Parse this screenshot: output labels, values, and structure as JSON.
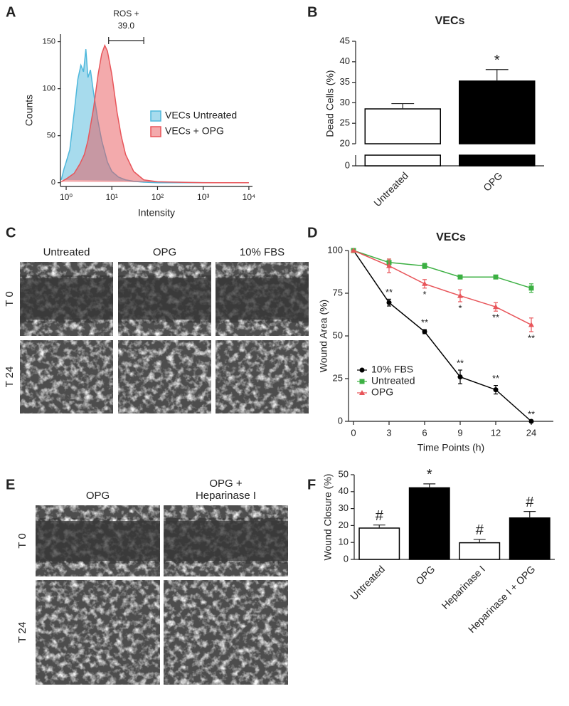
{
  "chart_data": [
    {
      "type": "area",
      "panel_label": "A",
      "xlabel": "Intensity",
      "ylabel": "Counts",
      "xscale": "log",
      "xlim": [
        0.75,
        12000
      ],
      "ylim": [
        -4,
        158
      ],
      "xticks": [
        {
          "value": 1,
          "label": "10⁰"
        },
        {
          "value": 10,
          "label": "10¹"
        },
        {
          "value": 100,
          "label": "10²"
        },
        {
          "value": 1000,
          "label": "10³"
        },
        {
          "value": 10000,
          "label": "10⁴"
        }
      ],
      "yticks": [
        0,
        50,
        100,
        150
      ],
      "series": [
        {
          "name": "VECs Untreated",
          "color": "#4fb8dc",
          "x": [
            0.78,
            0.9,
            1,
            1.2,
            1.5,
            1.8,
            2.1,
            2.4,
            2.7,
            3,
            3.4,
            4,
            5,
            6,
            8,
            10,
            14,
            20,
            30,
            50,
            100,
            1000,
            10000
          ],
          "values": [
            3,
            15,
            22,
            35,
            75,
            110,
            125,
            118,
            142,
            112,
            120,
            95,
            65,
            45,
            22,
            12,
            6,
            3,
            1.5,
            0.5,
            0,
            0,
            0
          ]
        },
        {
          "name": "VECs + OPG",
          "color": "#e8555a",
          "x": [
            0.78,
            1,
            1.5,
            2,
            2.5,
            3,
            4,
            5,
            6,
            7,
            8,
            10,
            13,
            16,
            20,
            30,
            50,
            100,
            1000,
            10000
          ],
          "values": [
            1,
            4,
            10,
            20,
            30,
            45,
            80,
            115,
            137,
            146,
            140,
            115,
            75,
            50,
            30,
            12,
            3,
            1,
            0,
            0
          ]
        }
      ],
      "gate": {
        "label": "ROS +",
        "value": {
          "value": 39,
          "label": "39.0"
        },
        "range": [
          8.5,
          50
        ]
      }
    },
    {
      "type": "bar",
      "panel_label": "B",
      "title": "VECs",
      "ylabel": "Dead Cells (%)",
      "categories": [
        "Untreated",
        "OPG"
      ],
      "values": [
        28.5,
        35.3
      ],
      "errors": [
        1.3,
        2.8
      ],
      "colors": [
        "#ffffff",
        "#000000"
      ],
      "ylim": [
        0,
        45
      ],
      "yticks": [
        0,
        20,
        25,
        30,
        35,
        40,
        45
      ],
      "axis_break": [
        2.5,
        20
      ],
      "annotations": [
        null,
        "*"
      ]
    },
    {
      "type": "line",
      "panel_label": "D",
      "title": "VECs",
      "xlabel": "Time Points (h)",
      "ylabel": "Wound Area (%)",
      "categories": [
        "0",
        "3",
        "6",
        "9",
        "12",
        "24"
      ],
      "ylim": [
        0,
        100
      ],
      "yticks": [
        0,
        25,
        50,
        75,
        100
      ],
      "legend": "lower left",
      "series": [
        {
          "name": "10% FBS",
          "color": "#000000",
          "marker": "circle",
          "values": [
            100,
            69.5,
            52.5,
            26,
            18.5,
            0
          ],
          "errors": [
            0,
            2,
            1.2,
            4,
            2.5,
            0
          ],
          "significance": [
            null,
            "**",
            "**",
            "**",
            "**",
            "**"
          ]
        },
        {
          "name": "Untreated",
          "color": "#3cb043",
          "marker": "square",
          "values": [
            100,
            93,
            91,
            84.5,
            84.5,
            78
          ],
          "errors": [
            0,
            2,
            1.5,
            1,
            0.8,
            2.5
          ],
          "significance": [
            null,
            null,
            null,
            null,
            null,
            null
          ]
        },
        {
          "name": "OPG",
          "color": "#e8555a",
          "marker": "triangle",
          "values": [
            100,
            91,
            80.5,
            73.5,
            67,
            56.5
          ],
          "errors": [
            0,
            4,
            2.5,
            3.5,
            2.5,
            4
          ],
          "significance": [
            null,
            null,
            "*",
            "*",
            "**",
            "**"
          ]
        }
      ]
    },
    {
      "type": "bar",
      "panel_label": "F",
      "ylabel": "Wound Closure (%)",
      "categories": [
        "Untreated",
        "OPG",
        "Heparinase I",
        "Heparinase I + OPG"
      ],
      "values": [
        18.5,
        42.3,
        9.8,
        24.5
      ],
      "errors": [
        1.8,
        2.3,
        2,
        3.8
      ],
      "colors": [
        "#ffffff",
        "#000000",
        "#ffffff",
        "#000000"
      ],
      "ylim": [
        0,
        50
      ],
      "yticks": [
        0,
        10,
        20,
        30,
        40,
        50
      ],
      "annotations": [
        "#",
        "*",
        "#",
        "#"
      ]
    }
  ],
  "image_panels": [
    {
      "panel_label": "C",
      "columns": [
        [
          "Untreated"
        ],
        [
          "OPG"
        ],
        [
          "10% FBS"
        ]
      ],
      "rows": [
        "T 0",
        "T 24"
      ]
    },
    {
      "panel_label": "E",
      "columns": [
        [
          "OPG"
        ],
        [
          "OPG +",
          "Heparinase I"
        ]
      ],
      "rows": [
        "T 0",
        "T 24"
      ]
    }
  ]
}
